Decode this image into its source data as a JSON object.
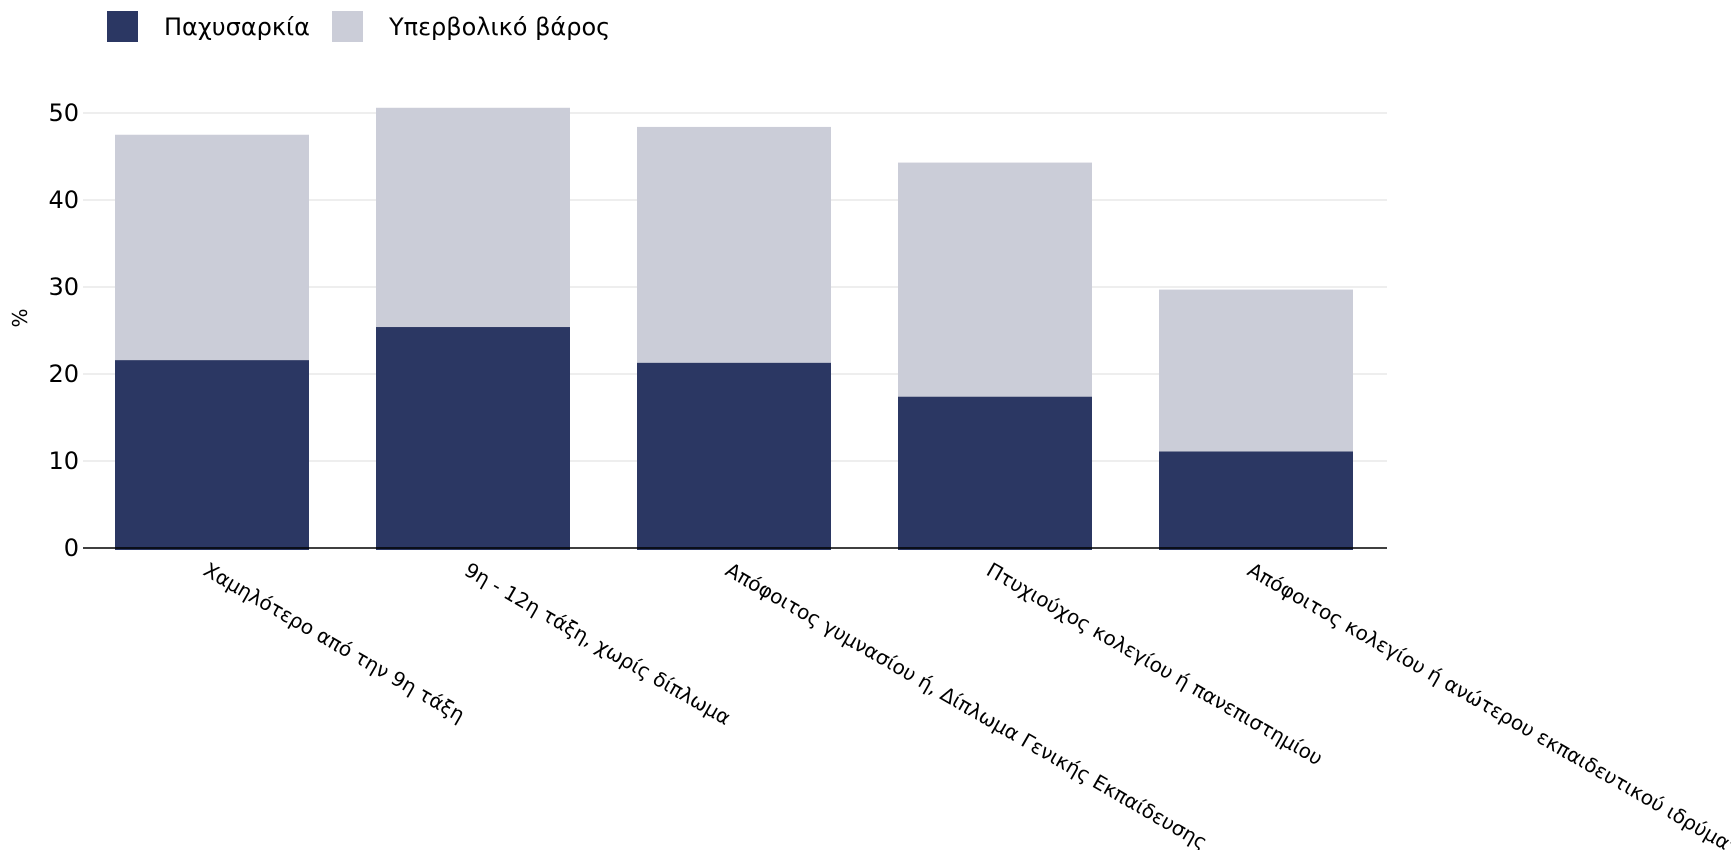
{
  "chart_data": {
    "type": "bar",
    "stacked": true,
    "categories": [
      "Χαμηλότερο από την 9η τάξη",
      "9η - 12η τάξη, χωρίς δίπλωμα",
      "Απόφοιτος γυμνασίου ή, Δίπλωμα Γενικής Εκπαίδευσης",
      "Πτυχιούχος κολεγίου ή πανεπιστημίου",
      "Απόφοιτος κολεγίου ή ανώτερου εκπαιδευτικού ιδρύματος"
    ],
    "series": [
      {
        "name": "Παχυσαρκία",
        "color": "#2b3763",
        "values": [
          21.6,
          25.4,
          21.3,
          17.4,
          11.1
        ]
      },
      {
        "name": "Υπερβολικό βάρος",
        "color": "#cbcdd8",
        "values": [
          25.9,
          25.2,
          27.1,
          26.9,
          18.6
        ]
      }
    ],
    "title": "",
    "xlabel": "",
    "ylabel": "%",
    "ylim": [
      0,
      50
    ],
    "yticks": [
      0,
      10,
      20,
      30,
      40,
      50
    ],
    "grid": true,
    "legend_position": "top-left"
  }
}
